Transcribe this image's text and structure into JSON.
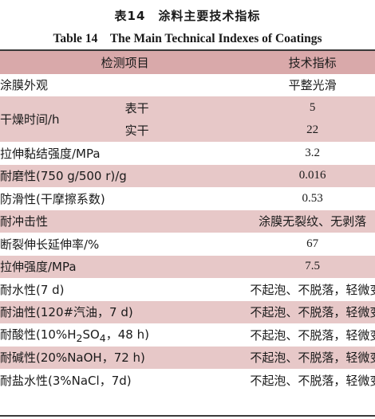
{
  "title_cn": "表14　涂料主要技术指标",
  "title_en": "Table 14　The Main Technical Indexes of Coatings",
  "header": {
    "item": "检测项目",
    "index": "技术指标"
  },
  "rows": [
    {
      "item": "涂膜外观",
      "value": "平整光滑"
    },
    {
      "item": "干燥时间/h",
      "sub1": "表干",
      "value1": "5",
      "sub2": "实干",
      "value2": "22"
    },
    {
      "item": "拉伸黏结强度/MPa",
      "value": "3.2"
    },
    {
      "item": "耐磨性(750 g/500 r)/g",
      "value": "0.016"
    },
    {
      "item": "防滑性(干摩擦系数)",
      "value": "0.53"
    },
    {
      "item": "耐冲击性",
      "value": "涂膜无裂纹、无剥落"
    },
    {
      "item": "断裂伸长延伸率/%",
      "value": "67"
    },
    {
      "item": "拉伸强度/MPa",
      "value": "7.5"
    },
    {
      "item": "耐水性(7 d)",
      "value": "不起泡、不脱落，轻微变色"
    },
    {
      "item": "耐油性(120#汽油，7 d)",
      "value": "不起泡、不脱落，轻微变色"
    },
    {
      "item_pre": "耐酸性(10%H",
      "item_sub1": "2",
      "item_mid": "SO",
      "item_sub2": "4",
      "item_post": "，48 h)",
      "value": "不起泡、不脱落，轻微变色"
    },
    {
      "item": "耐碱性(20%NaOH，72 h)",
      "value": "不起泡、不脱落，轻微变色"
    },
    {
      "item": "耐盐水性(3%NaCl，7d)",
      "value": "不起泡、不脱落，轻微变色"
    }
  ]
}
